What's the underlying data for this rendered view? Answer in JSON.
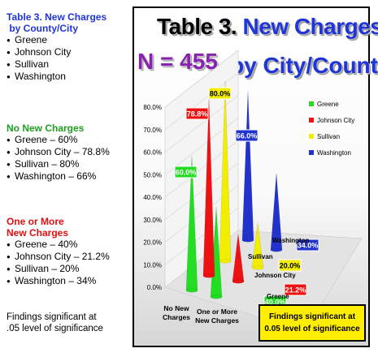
{
  "left": {
    "sections": [
      {
        "key": "table",
        "heading_lines": [
          "Table 3. New Charges",
          " by County/City"
        ],
        "heading_color": "#1f35d8",
        "items": [
          "Greene",
          "Johnson City",
          "Sullivan",
          "Washington"
        ]
      },
      {
        "key": "no-new-charges",
        "heading_lines": [
          "No New Charges"
        ],
        "heading_color": "#1e9e1e",
        "items": [
          "Greene – 60%",
          "Johnson City – 78.8%",
          "Sullivan – 80%",
          "Washington – 66%"
        ]
      },
      {
        "key": "one-or-more",
        "heading_lines": [
          "One or More",
          "New Charges"
        ],
        "heading_color": "#e01010",
        "items": [
          "Greene – 40%",
          "Johnson City – 21.2%",
          "Sullivan – 20%",
          "Washington – 34%"
        ]
      }
    ],
    "findings_lines": [
      "Findings significant at",
      ".05 level of significance"
    ]
  },
  "chart_data": {
    "type": "bar",
    "title_part1": "Table 3.",
    "title_part2": "New Charges",
    "title_part3": "by City/County",
    "subtitle": "N = 455",
    "categories": [
      "No New Charges",
      "One or More New Charges"
    ],
    "category_lines": [
      [
        "No New",
        "Charges"
      ],
      [
        "One or More",
        "New Charges"
      ]
    ],
    "series": [
      {
        "name": "Greene",
        "values": [
          60.0,
          40.0
        ],
        "color": "#22dd22",
        "label_bg": "#22dd22",
        "label_fg": "#ffffff"
      },
      {
        "name": "Johnson City",
        "values": [
          78.8,
          21.2
        ],
        "color": "#ee1111",
        "label_bg": "#ee1111",
        "label_fg": "#ffffff"
      },
      {
        "name": "Sullivan",
        "values": [
          80.0,
          20.0
        ],
        "color": "#f2ee00",
        "label_bg": "#f2ee00",
        "label_fg": "#000000"
      },
      {
        "name": "Washington",
        "values": [
          66.0,
          34.0
        ],
        "color": "#2233cc",
        "label_bg": "#2233cc",
        "label_fg": "#ffffff"
      }
    ],
    "value_labels": [
      [
        "60.0%",
        "40.0%"
      ],
      [
        "78.8%",
        "21.2%"
      ],
      [
        "80.0%",
        "20.0%"
      ],
      [
        "66.0%",
        "34.0%"
      ]
    ],
    "yticks": [
      "0.0%",
      "10.0%",
      "20.0%",
      "30.0%",
      "40.0%",
      "50.0%",
      "60.0%",
      "70.0%",
      "80.0%"
    ],
    "ylim": [
      0,
      80
    ],
    "legend_position": "right",
    "annotation_lines": [
      "Findings significant at",
      "0.05 level of significance"
    ],
    "annotation_bg": "#ffee00"
  }
}
